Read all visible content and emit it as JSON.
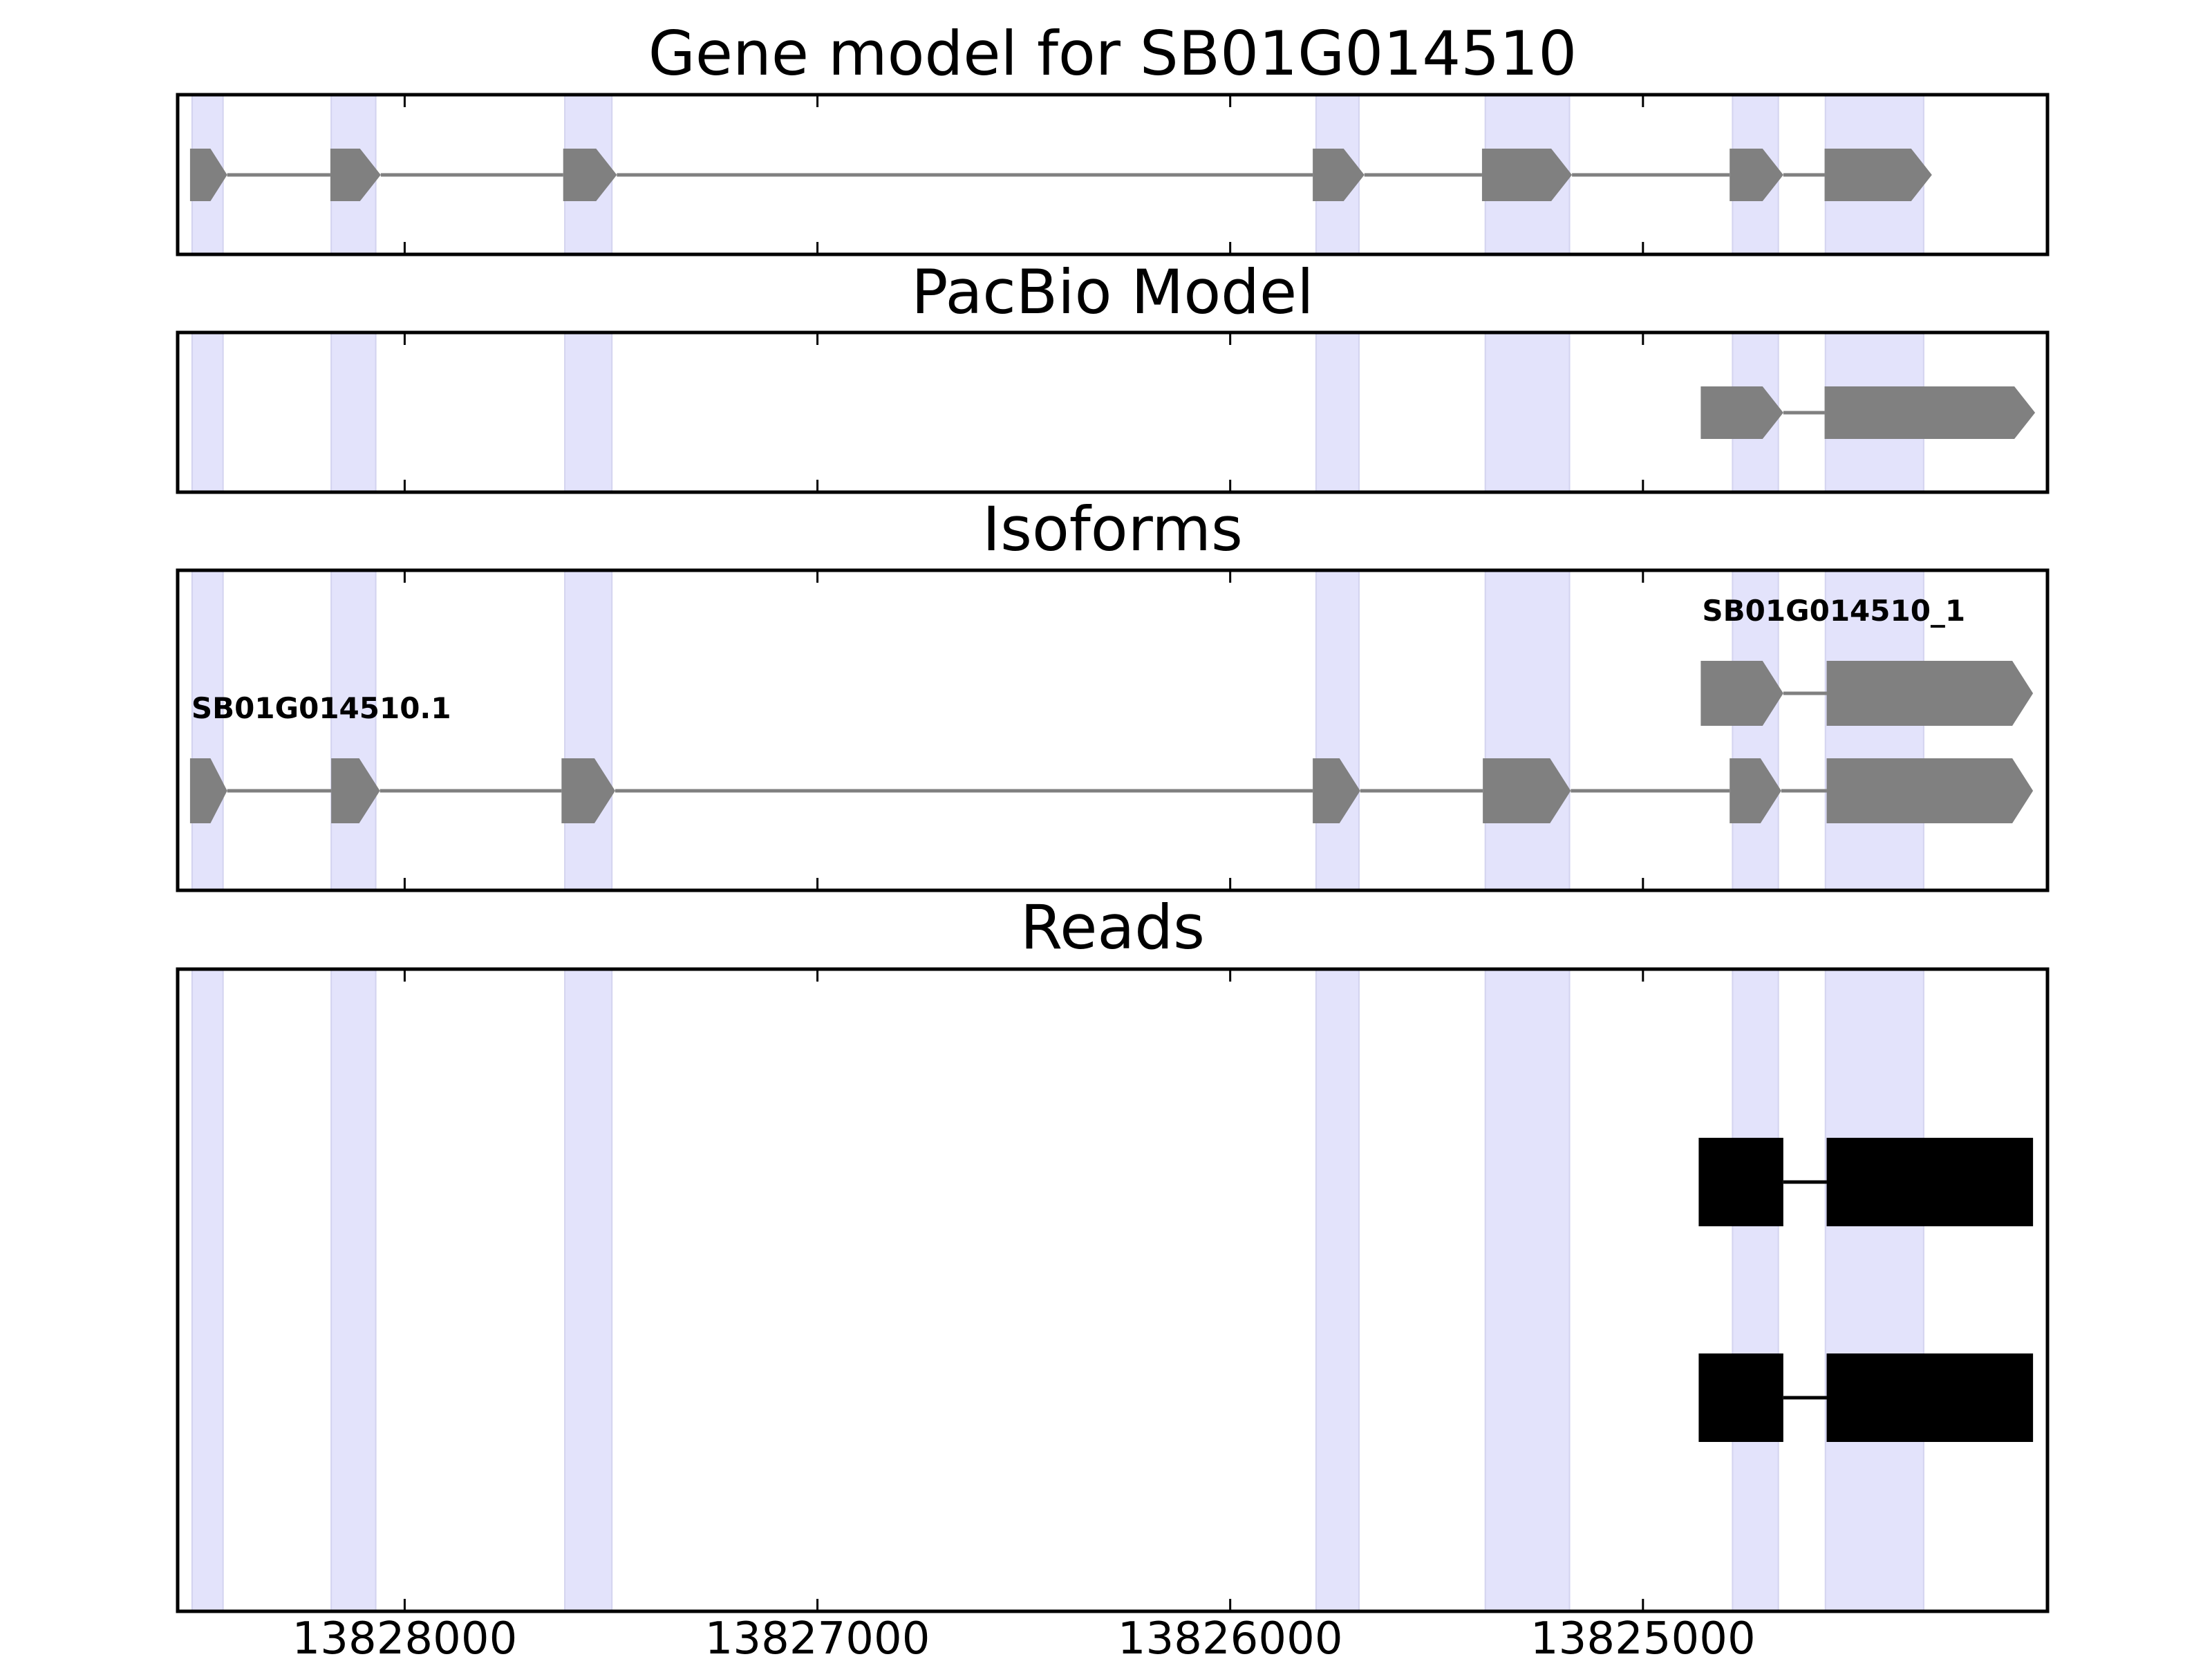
{
  "figure": {
    "title": "Gene model for SB01G014510"
  },
  "colors": {
    "highlight": "#e3e3fb",
    "highlight_edge": "#d3d3ef",
    "feature": "#808080",
    "read": "#000000",
    "frame": "#000000"
  },
  "chart_data": {
    "type": "gene_track",
    "x_axis": {
      "range": [
        13828550,
        13824020
      ],
      "direction": "descending",
      "ticks": [
        13828000,
        13827000,
        13826000,
        13825000
      ],
      "tick_labels": [
        "13828000",
        "13827000",
        "13826000",
        "13825000"
      ]
    },
    "highlight_regions": [
      [
        13828515,
        13828440
      ],
      [
        13828178,
        13828070
      ],
      [
        13827612,
        13827498
      ],
      [
        13825792,
        13825688
      ],
      [
        13825382,
        13825178
      ],
      [
        13824783,
        13824672
      ],
      [
        13824558,
        13824320
      ]
    ],
    "panels": [
      {
        "title": "Gene model for SB01G014510",
        "tracks": [
          {
            "label": "",
            "strand": "-",
            "exons": [
              [
                13828520,
                13828430
              ],
              [
                13828180,
                13828058
              ],
              [
                13827616,
                13827486
              ],
              [
                13825800,
                13825675
              ],
              [
                13825390,
                13825172
              ],
              [
                13824790,
                13824660
              ],
              [
                13824560,
                13824300
              ]
            ]
          }
        ]
      },
      {
        "title": "PacBio Model",
        "tracks": [
          {
            "label": "",
            "strand": "-",
            "exons": [
              [
                13824860,
                13824660
              ],
              [
                13824560,
                13824050
              ]
            ]
          }
        ]
      },
      {
        "title": "Isoforms",
        "tracks": [
          {
            "label": "SB01G014510.1",
            "strand": "-",
            "exons": [
              [
                13828520,
                13828430
              ],
              [
                13828178,
                13828060
              ],
              [
                13827620,
                13827490
              ],
              [
                13825800,
                13825685
              ],
              [
                13825388,
                13825175
              ],
              [
                13824790,
                13824665
              ],
              [
                13824555,
                13824055
              ]
            ]
          },
          {
            "label": "SB01G014510_1",
            "strand": "-",
            "exons": [
              [
                13824860,
                13824660
              ],
              [
                13824555,
                13824055
              ]
            ]
          }
        ]
      },
      {
        "title": "Reads",
        "tracks": [
          {
            "label": "",
            "strand": "-",
            "exons": [
              [
                13824865,
                13824660
              ],
              [
                13824555,
                13824055
              ]
            ]
          },
          {
            "label": "",
            "strand": "-",
            "exons": [
              [
                13824865,
                13824660
              ],
              [
                13824555,
                13824055
              ]
            ]
          }
        ]
      }
    ]
  }
}
